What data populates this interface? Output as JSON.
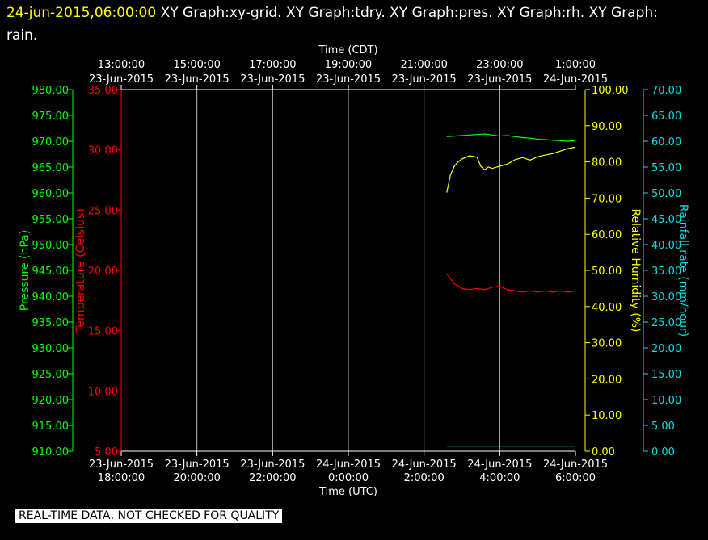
{
  "header": {
    "timestamp": "24-jun-2015,06:00:00",
    "graphs": "  XY Graph:xy-grid.  XY Graph:tdry.  XY Graph:pres.  XY Graph:rh.  XY Graph:",
    "graphs_cont": "rain."
  },
  "notice": "REAL-TIME DATA, NOT CHECKED FOR QUALITY",
  "colors": {
    "background": "#000000",
    "pressure": "#00ff00",
    "temperature": "#ff0000",
    "humidity": "#ffff00",
    "rain": "#00e0e0",
    "grid": "#ffffff"
  },
  "chart_data": {
    "type": "line",
    "x_axis_top": {
      "label": "Time (CDT)",
      "ticks": [
        [
          "13:00:00",
          "23-Jun-2015"
        ],
        [
          "15:00:00",
          "23-Jun-2015"
        ],
        [
          "17:00:00",
          "23-Jun-2015"
        ],
        [
          "19:00:00",
          "23-Jun-2015"
        ],
        [
          "21:00:00",
          "23-Jun-2015"
        ],
        [
          "23:00:00",
          "23-Jun-2015"
        ],
        [
          "1:00:00",
          "24-Jun-2015"
        ]
      ]
    },
    "x_axis_bottom": {
      "label": "Time (UTC)",
      "ticks": [
        [
          "23-Jun-2015",
          "18:00:00"
        ],
        [
          "23-Jun-2015",
          "20:00:00"
        ],
        [
          "23-Jun-2015",
          "22:00:00"
        ],
        [
          "24-Jun-2015",
          "0:00:00"
        ],
        [
          "24-Jun-2015",
          "2:00:00"
        ],
        [
          "24-Jun-2015",
          "4:00:00"
        ],
        [
          "24-Jun-2015",
          "6:00:00"
        ]
      ]
    },
    "xlim_utc_hours": [
      18,
      30
    ],
    "grid": true,
    "axes": {
      "pressure": {
        "label": "Pressure (hPa)",
        "ylim": [
          910,
          980
        ],
        "step": 5
      },
      "temperature": {
        "label": "Temperature (Celsius)",
        "ylim": [
          5,
          35
        ],
        "step": 5
      },
      "humidity": {
        "label": "Relative Humidity (%)",
        "ylim": [
          0,
          100
        ],
        "step": 10,
        "ticks_max": 100
      },
      "rain": {
        "label": "Rainfall rate (mm/hour)",
        "ylim": [
          0,
          70
        ],
        "step": 5
      }
    },
    "series": [
      {
        "axis": "pressure",
        "x": [
          2.6,
          2.8,
          3.0,
          3.2,
          3.4,
          3.6,
          3.8,
          4.0,
          4.2,
          4.4,
          4.6,
          4.8,
          5.0,
          5.2,
          5.4,
          5.6,
          5.8,
          6.0
        ],
        "y": [
          970.9,
          971.0,
          971.1,
          971.2,
          971.3,
          971.4,
          971.2,
          971.0,
          971.1,
          970.9,
          970.7,
          970.6,
          970.4,
          970.3,
          970.2,
          970.1,
          970.0,
          970.1
        ]
      },
      {
        "axis": "temperature",
        "x": [
          2.6,
          2.7,
          2.8,
          3.0,
          3.2,
          3.4,
          3.6,
          3.8,
          4.0,
          4.2,
          4.4,
          4.6,
          4.8,
          5.0,
          5.2,
          5.4,
          5.6,
          5.8,
          6.0
        ],
        "y": [
          19.7,
          19.3,
          18.9,
          18.5,
          18.4,
          18.5,
          18.4,
          18.6,
          18.7,
          18.4,
          18.3,
          18.2,
          18.3,
          18.2,
          18.3,
          18.2,
          18.3,
          18.2,
          18.3
        ]
      },
      {
        "axis": "humidity",
        "x": [
          2.6,
          2.7,
          2.8,
          2.9,
          3.0,
          3.2,
          3.4,
          3.5,
          3.6,
          3.7,
          3.8,
          4.0,
          4.2,
          4.4,
          4.6,
          4.8,
          5.0,
          5.2,
          5.4,
          5.6,
          5.8,
          6.0
        ],
        "y": [
          71.5,
          76.5,
          78.8,
          80.0,
          80.8,
          81.7,
          81.3,
          78.8,
          77.8,
          78.6,
          78.2,
          78.8,
          79.4,
          80.6,
          81.2,
          80.5,
          81.4,
          81.9,
          82.3,
          83.0,
          83.7,
          84.1
        ]
      },
      {
        "axis": "rain",
        "x": [
          2.6,
          6.0
        ],
        "y": [
          1.0,
          1.0
        ]
      }
    ]
  }
}
